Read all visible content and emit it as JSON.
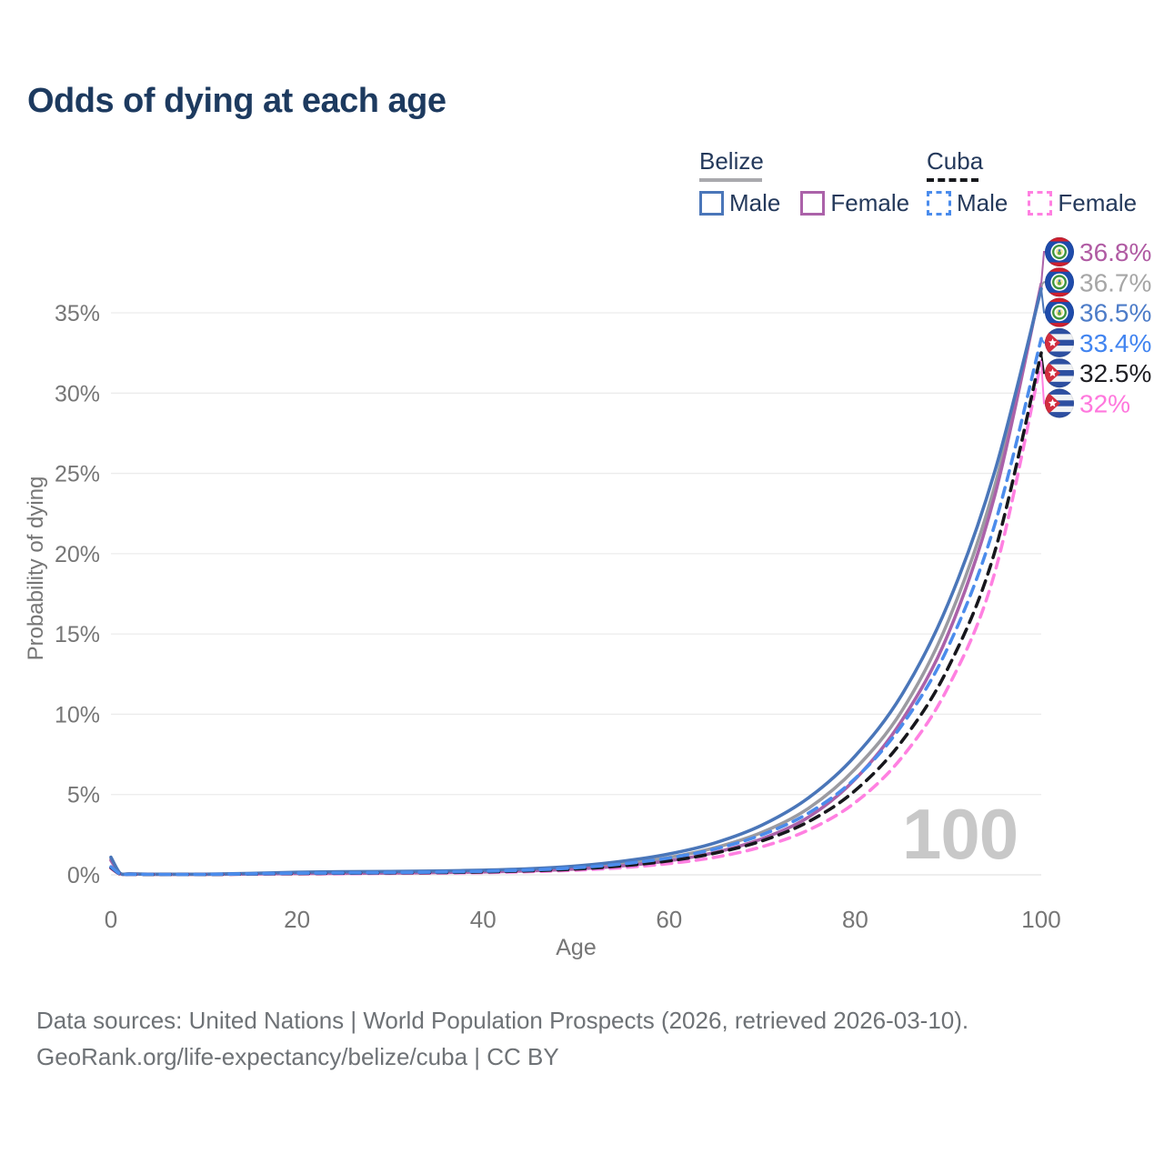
{
  "title": "Odds of dying at each age",
  "watermark": "100",
  "footer": {
    "line1": "Data sources: United Nations | World Population Prospects (2026, retrieved 2026-03-10).",
    "line2": "GeoRank.org/life-expectancy/belize/cuba | CC BY"
  },
  "legend": {
    "groups": [
      {
        "label": "Belize",
        "line_style": "solid",
        "line_color": "#a9a9ad",
        "items": [
          {
            "label": "Male",
            "color": "#4a76b9",
            "dash": false
          },
          {
            "label": "Female",
            "color": "#ab62a9",
            "dash": false
          }
        ]
      },
      {
        "label": "Cuba",
        "line_style": "dashed",
        "line_color": "#17181c",
        "items": [
          {
            "label": "Male",
            "color": "#4b8cec",
            "dash": true
          },
          {
            "label": "Female",
            "color": "#ff80e1",
            "dash": true
          }
        ]
      }
    ]
  },
  "chart_data": {
    "type": "line",
    "title": "Odds of dying at each age",
    "xlabel": "Age",
    "ylabel": "Probability of dying",
    "xlim": [
      0,
      100
    ],
    "ylim": [
      0,
      38.5
    ],
    "grid": true,
    "legend_position": "top-right",
    "x_ticks": [
      0,
      20,
      40,
      60,
      80,
      100
    ],
    "y_ticks": [
      "0%",
      "5%",
      "10%",
      "15%",
      "20%",
      "25%",
      "30%",
      "35%"
    ],
    "y_tick_values": [
      0,
      5,
      10,
      15,
      20,
      25,
      30,
      35
    ],
    "x": [
      0,
      1,
      2,
      5,
      10,
      15,
      20,
      25,
      30,
      35,
      40,
      45,
      50,
      55,
      60,
      65,
      70,
      75,
      80,
      85,
      90,
      95,
      100
    ],
    "series": [
      {
        "name": "Belize Both sexes",
        "country": "Belize",
        "flag": "belize",
        "color": "#9b9ba1",
        "dash": false,
        "end_label": "36.7%",
        "end_label_color": "#a6a6a6",
        "values": [
          1.0,
          0.08,
          0.05,
          0.035,
          0.035,
          0.07,
          0.12,
          0.14,
          0.16,
          0.19,
          0.23,
          0.31,
          0.45,
          0.7,
          1.08,
          1.7,
          2.65,
          4.15,
          6.6,
          10.2,
          15.8,
          24.2,
          36.7
        ]
      },
      {
        "name": "Belize Female",
        "country": "Belize",
        "flag": "belize",
        "color": "#ab62a9",
        "dash": false,
        "end_label": "36.8%",
        "end_label_color": "#b05ba3",
        "values": [
          0.9,
          0.07,
          0.045,
          0.03,
          0.03,
          0.05,
          0.08,
          0.09,
          0.11,
          0.14,
          0.18,
          0.25,
          0.36,
          0.56,
          0.88,
          1.4,
          2.25,
          3.6,
          5.95,
          9.6,
          15.0,
          23.6,
          36.8
        ]
      },
      {
        "name": "Belize Male",
        "country": "Belize",
        "flag": "belize",
        "color": "#4a76b9",
        "dash": false,
        "end_label": "36.5%",
        "end_label_color": "#4d7cc8",
        "values": [
          1.1,
          0.09,
          0.06,
          0.04,
          0.04,
          0.09,
          0.16,
          0.19,
          0.21,
          0.24,
          0.29,
          0.38,
          0.55,
          0.85,
          1.3,
          2.0,
          3.1,
          4.8,
          7.4,
          11.2,
          16.9,
          25.1,
          36.5
        ]
      },
      {
        "name": "Cuba Female",
        "country": "Cuba",
        "flag": "cuba",
        "color": "#ff80e1",
        "dash": true,
        "end_label": "32%",
        "end_label_color": "#ff77dd",
        "values": [
          0.4,
          0.04,
          0.03,
          0.02,
          0.02,
          0.04,
          0.06,
          0.07,
          0.09,
          0.11,
          0.14,
          0.2,
          0.29,
          0.45,
          0.7,
          1.1,
          1.75,
          2.8,
          4.5,
          7.3,
          11.7,
          18.8,
          32.0
        ]
      },
      {
        "name": "Cuba Both sexes",
        "country": "Cuba",
        "flag": "cuba",
        "color": "#17171c",
        "dash": true,
        "end_label": "32.5%",
        "end_label_color": "#1f1f24",
        "values": [
          0.45,
          0.045,
          0.03,
          0.025,
          0.025,
          0.05,
          0.08,
          0.1,
          0.12,
          0.14,
          0.18,
          0.25,
          0.36,
          0.56,
          0.87,
          1.36,
          2.12,
          3.32,
          5.25,
          8.3,
          12.9,
          20.1,
          32.5
        ]
      },
      {
        "name": "Cuba Male",
        "country": "Cuba",
        "flag": "cuba",
        "color": "#4b8cec",
        "dash": true,
        "end_label": "33.4%",
        "end_label_color": "#4184f0",
        "values": [
          0.5,
          0.05,
          0.035,
          0.03,
          0.03,
          0.06,
          0.1,
          0.12,
          0.14,
          0.17,
          0.22,
          0.3,
          0.44,
          0.68,
          1.05,
          1.62,
          2.5,
          3.85,
          6.0,
          9.3,
          14.2,
          21.8,
          33.4
        ]
      }
    ]
  }
}
